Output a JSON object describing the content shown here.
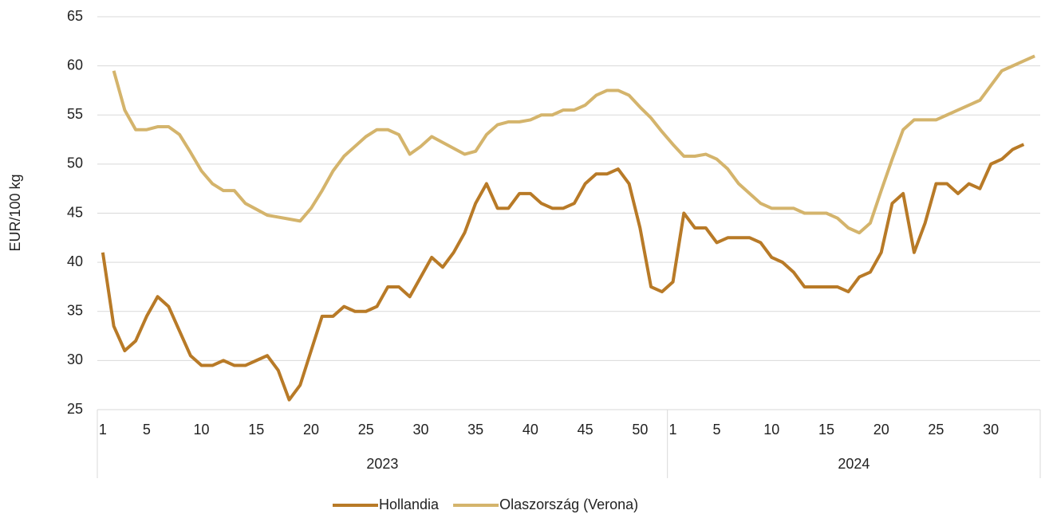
{
  "chart_data": {
    "type": "line",
    "y_label": "EUR/100 kg",
    "groups": [
      {
        "label": "2023",
        "categories": [
          1,
          null,
          null,
          null,
          5,
          null,
          null,
          null,
          null,
          10,
          null,
          null,
          null,
          null,
          15,
          null,
          null,
          null,
          null,
          20,
          null,
          null,
          null,
          null,
          25,
          null,
          null,
          null,
          null,
          30,
          null,
          null,
          null,
          null,
          35,
          null,
          null,
          null,
          null,
          40,
          null,
          null,
          null,
          null,
          45,
          null,
          null,
          null,
          null,
          50,
          null,
          null
        ]
      },
      {
        "label": "2024",
        "categories": [
          1,
          null,
          null,
          null,
          5,
          null,
          null,
          null,
          null,
          10,
          null,
          null,
          null,
          null,
          15,
          null,
          null,
          null,
          null,
          20,
          null,
          null,
          null,
          null,
          25,
          null,
          null,
          null,
          null,
          30,
          null,
          null,
          null,
          null
        ]
      }
    ],
    "series": [
      {
        "name": "Hollandia",
        "color": "#b87a27",
        "values": [
          41,
          33.5,
          31,
          32,
          34.5,
          36.5,
          35.5,
          33,
          30.5,
          29.5,
          29.5,
          30,
          29.5,
          29.5,
          30,
          30.5,
          29,
          26,
          27.5,
          31,
          34.5,
          34.5,
          35.5,
          35,
          35,
          35.5,
          37.5,
          37.5,
          36.5,
          38.5,
          40.5,
          39.5,
          41,
          43,
          46,
          48,
          45.5,
          45.5,
          47,
          47,
          46,
          45.5,
          45.5,
          46,
          48,
          49,
          49,
          49.5,
          48,
          43.5,
          37.5,
          37,
          38,
          45,
          43.5,
          43.5,
          42,
          42.5,
          42.5,
          42.5,
          42,
          40.5,
          40,
          39,
          37.5,
          37.5,
          37.5,
          37.5,
          37,
          38.5,
          39,
          41,
          46,
          47,
          41,
          44,
          48,
          48,
          47,
          48,
          47.5,
          50,
          50.5,
          51.5,
          52,
          null
        ]
      },
      {
        "name": "Olaszország (Verona)",
        "color": "#d4b46c",
        "values": [
          null,
          59.5,
          55.5,
          53.5,
          53.5,
          53.8,
          53.8,
          53,
          51.2,
          49.3,
          48,
          47.3,
          47.3,
          46,
          45.4,
          44.8,
          44.6,
          44.4,
          44.2,
          45.5,
          47.3,
          49.3,
          50.8,
          51.8,
          52.8,
          53.5,
          53.5,
          53,
          51,
          51.8,
          52.8,
          52.2,
          51.6,
          51,
          51.3,
          53,
          54,
          54.3,
          54.3,
          54.5,
          55,
          55,
          55.5,
          55.5,
          56,
          57,
          57.5,
          57.5,
          57,
          55.8,
          54.7,
          53.3,
          52,
          50.8,
          50.8,
          51,
          50.5,
          49.5,
          48,
          47,
          46,
          45.5,
          45.5,
          45.5,
          45,
          45,
          45,
          44.5,
          43.5,
          43,
          44,
          47.3,
          50.5,
          53.5,
          54.5,
          54.5,
          54.5,
          55,
          55.5,
          56,
          56.5,
          58,
          59.5,
          60,
          60.5,
          61
        ]
      }
    ],
    "ylim": [
      25,
      65
    ],
    "yticks": [
      25,
      30,
      35,
      40,
      45,
      50,
      55,
      60,
      65
    ],
    "grid": true,
    "legend": "bottom"
  }
}
